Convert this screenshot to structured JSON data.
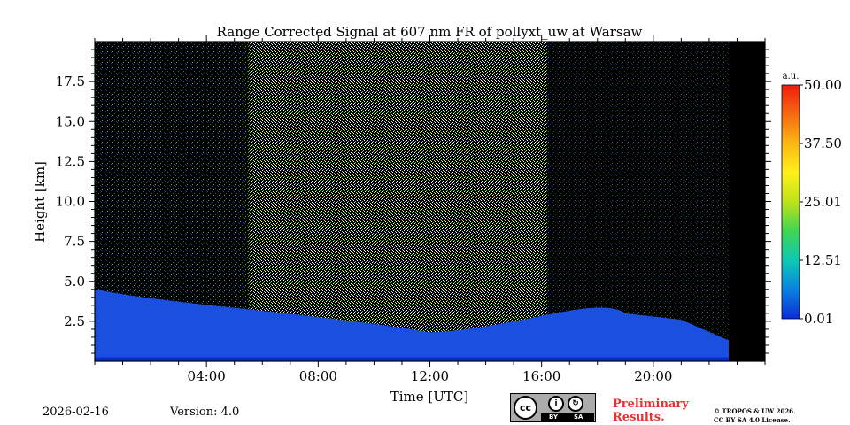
{
  "chart_data": {
    "type": "heatmap",
    "title": "Range Corrected Signal at 607 nm FR of pollyxt_uw at Warsaw",
    "xlabel": "Time [UTC]",
    "ylabel": "Height [km]",
    "xlim": [
      0,
      24
    ],
    "ylim": [
      0,
      20
    ],
    "x_ticks": [
      {
        "value": 4,
        "label": "04:00"
      },
      {
        "value": 8,
        "label": "08:00"
      },
      {
        "value": 12,
        "label": "12:00"
      },
      {
        "value": 16,
        "label": "16:00"
      },
      {
        "value": 20,
        "label": "20:00"
      }
    ],
    "y_ticks": [
      {
        "value": 2.5,
        "label": "2.5"
      },
      {
        "value": 5.0,
        "label": "5.0"
      },
      {
        "value": 7.5,
        "label": "7.5"
      },
      {
        "value": 10.0,
        "label": "10.0"
      },
      {
        "value": 12.5,
        "label": "12.5"
      },
      {
        "value": 15.0,
        "label": "15.0"
      },
      {
        "value": 17.5,
        "label": "17.5"
      }
    ],
    "colorbar": {
      "unit_label": "a.u.",
      "range": [
        0.01,
        50.0
      ],
      "tick_labels": [
        "0.01",
        "12.51",
        "25.01",
        "37.50",
        "50.00"
      ],
      "colors": [
        "#0b2bd6",
        "#0a82e0",
        "#0cc9b5",
        "#3fd653",
        "#bde219",
        "#fff01a",
        "#fbb714",
        "#f66a11",
        "#ef1c0d"
      ]
    },
    "signal_regions": [
      {
        "name": "daytime-high-background",
        "x_start": 5.5,
        "x_end": 16.2,
        "peak_altitude": 20
      },
      {
        "name": "boundary-layer",
        "x_start": 0,
        "x_end": 22.7,
        "top_height_day": 3.0,
        "top_height_night": 3.0
      }
    ],
    "data_end_time": 22.7
  },
  "footer": {
    "date": "2026-02-16",
    "version": "Version: 4.0",
    "preliminary_line1": "Preliminary",
    "preliminary_line2": "Results.",
    "copyright_line1": "© TROPOS & UW 2026.",
    "copyright_line2": "CC BY SA 4.0 License.",
    "cc_badge": {
      "cc": "cc",
      "by": "BY",
      "sa": "SA"
    }
  }
}
